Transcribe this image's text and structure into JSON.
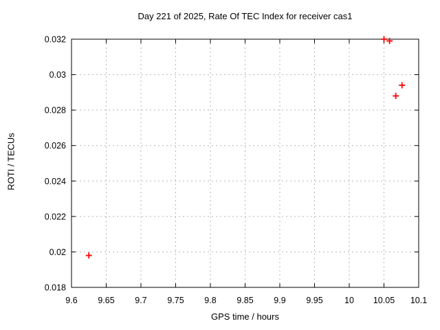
{
  "colors": {
    "background": "#ffffff",
    "border": "#000000",
    "grid": "#b4b4b4",
    "text": "#000000",
    "marker": "#ff0000"
  },
  "chart_data": {
    "type": "scatter",
    "title": "Day 221 of 2025, Rate Of TEC Index for receiver cas1",
    "xlabel": "GPS time / hours",
    "ylabel": "ROTI / TECUs",
    "xlim": [
      9.6,
      10.1
    ],
    "ylim": [
      0.018,
      0.032
    ],
    "grid": true,
    "legend": "none",
    "x_ticks": {
      "values": [
        9.6,
        9.65,
        9.7,
        9.75,
        9.8,
        9.85,
        9.9,
        9.95,
        10,
        10.05,
        10.1
      ],
      "labels": [
        "9.6",
        "9.65",
        "9.7",
        "9.75",
        "9.8",
        "9.85",
        "9.9",
        "9.95",
        "10",
        "10.05",
        "10.1"
      ]
    },
    "y_ticks": {
      "values": [
        0.018,
        0.02,
        0.022,
        0.024,
        0.026,
        0.028,
        0.03,
        0.032
      ],
      "labels": [
        "0.018",
        "0.02",
        "0.022",
        "0.024",
        "0.026",
        "0.028",
        "0.03",
        "0.032"
      ]
    },
    "series": [
      {
        "name": "ROTI",
        "marker": "plus",
        "color": "#ff0000",
        "points": [
          {
            "x": 9.625,
            "y": 0.0198
          },
          {
            "x": 10.05,
            "y": 0.032
          },
          {
            "x": 10.058,
            "y": 0.0319
          },
          {
            "x": 10.067,
            "y": 0.0288
          },
          {
            "x": 10.076,
            "y": 0.0294
          }
        ]
      }
    ]
  }
}
